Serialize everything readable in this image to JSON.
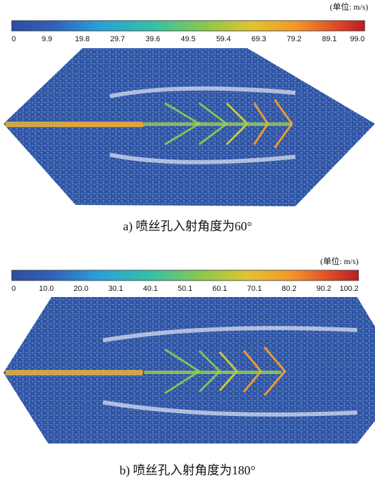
{
  "panels": [
    {
      "unit": "(单位: m/s)",
      "colorbar_ticks": [
        "0",
        "9.9",
        "19.8",
        "29.7",
        "39.6",
        "49.5",
        "59.4",
        "69.3",
        "79.2",
        "89.1",
        "99.0"
      ],
      "caption": "a)  喷丝孔入射角度为60°"
    },
    {
      "unit": "(单位: m/s)",
      "colorbar_ticks": [
        "0",
        "10.0",
        "20.0",
        "30.1",
        "40.1",
        "50.1",
        "60.1",
        "70.1",
        "80.2",
        "90.2",
        "100.2"
      ],
      "caption": "b)  喷丝孔入射角度为180°"
    }
  ]
}
